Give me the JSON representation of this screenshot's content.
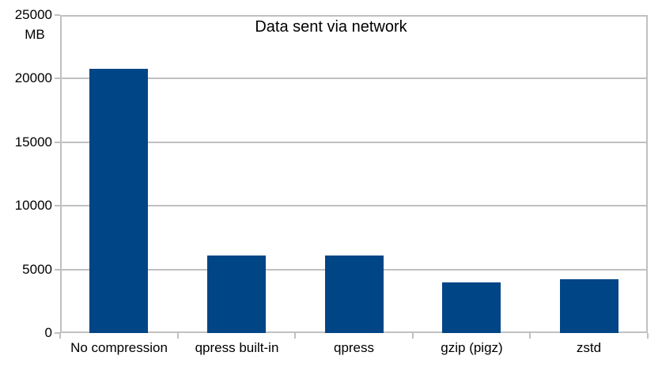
{
  "chart_data": {
    "type": "bar",
    "title": "Data sent via network",
    "y_unit": "MB",
    "categories": [
      "No compression",
      "qpress built-in",
      "qpress",
      "gzip (pigz)",
      "zstd"
    ],
    "values": [
      20800,
      6100,
      6100,
      4000,
      4200
    ],
    "ylim": [
      0,
      25000
    ],
    "yticks": [
      0,
      5000,
      10000,
      15000,
      20000,
      25000
    ],
    "xlabel": "",
    "ylabel": "MB",
    "grid": "horizontal",
    "legend": "none",
    "bar_color": "#004586",
    "grid_color": "#c0c0c0",
    "text_color": "#000000",
    "background_color": "#ffffff"
  }
}
